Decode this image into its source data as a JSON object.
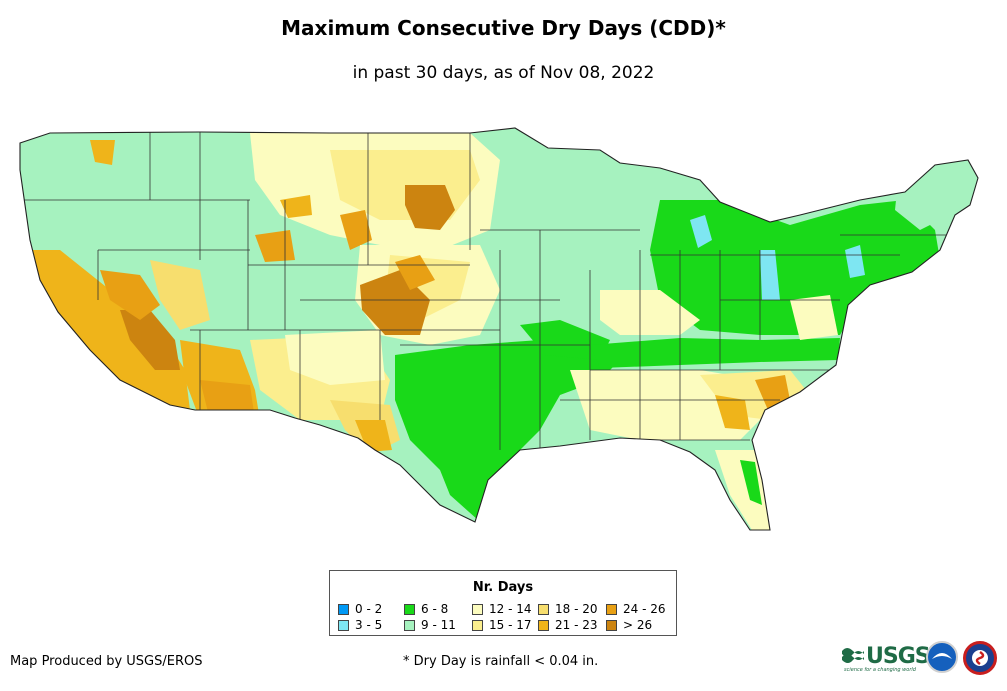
{
  "title": "Maximum Consecutive Dry Days (CDD)*",
  "subtitle": "in past 30 days, as of Nov 08, 2022",
  "map": {
    "region": "Contiguous United States",
    "metric": "Maximum Consecutive Dry Days",
    "fill_classes": {
      "c0": "#0099f5",
      "c3": "#7ee6f2",
      "c6": "#19d919",
      "c9": "#a6f2bf",
      "c12": "#fcfcbf",
      "c15": "#fbee8e",
      "c18": "#f7de6e",
      "c21": "#efb41a",
      "c24": "#e8a014",
      "c26": "#cc8410"
    }
  },
  "legend": {
    "title": "Nr. Days",
    "items": [
      {
        "label": "0 - 2",
        "color": "#0099f5"
      },
      {
        "label": "3 - 5",
        "color": "#7ee6f2"
      },
      {
        "label": "6 - 8",
        "color": "#19d919"
      },
      {
        "label": "9 - 11",
        "color": "#a6f2bf"
      },
      {
        "label": "12 - 14",
        "color": "#fcfcbf"
      },
      {
        "label": "15 - 17",
        "color": "#fbee8e"
      },
      {
        "label": "18 - 20",
        "color": "#f7de6e"
      },
      {
        "label": "21 - 23",
        "color": "#efb41a"
      },
      {
        "label": "24 - 26",
        "color": "#e8a014"
      },
      {
        "label": "> 26",
        "color": "#cc8410"
      }
    ]
  },
  "footer": {
    "credit": "Map Produced by USGS/EROS",
    "note": "* Dry Day is rainfall < 0.04 in."
  },
  "logos": {
    "usgs_text": "USGS",
    "usgs_tagline": "science for a changing world",
    "agency_icons": [
      "noaa-logo-icon",
      "nws-logo-icon"
    ]
  }
}
